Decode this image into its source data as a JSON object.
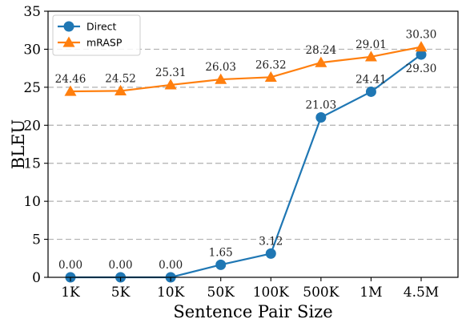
{
  "chart_data": {
    "type": "line",
    "categories": [
      "1K",
      "5K",
      "10K",
      "50K",
      "100K",
      "500K",
      "1M",
      "4.5M"
    ],
    "series": [
      {
        "name": "Direct",
        "color": "#1f77b4",
        "marker": "circle",
        "values": [
          0.0,
          0.0,
          0.0,
          1.65,
          3.12,
          21.03,
          24.41,
          29.3
        ],
        "labels": [
          "0.00",
          "0.00",
          "0.00",
          "1.65",
          "3.12",
          "21.03",
          "24.41",
          "29.30"
        ]
      },
      {
        "name": "mRASP",
        "color": "#ff7f0e",
        "marker": "triangle",
        "values": [
          24.46,
          24.52,
          25.31,
          26.03,
          26.32,
          28.24,
          29.01,
          30.3
        ],
        "labels": [
          "24.46",
          "24.52",
          "25.31",
          "26.03",
          "26.32",
          "28.24",
          "29.01",
          "30.30"
        ]
      }
    ],
    "xlabel": "Sentence Pair Size",
    "ylabel": "BLEU",
    "ylim": [
      0,
      35
    ],
    "yticks": [
      0,
      5,
      10,
      15,
      20,
      25,
      30,
      35
    ],
    "ytick_labels": [
      "0",
      "5",
      "10",
      "15",
      "20",
      "25",
      "30",
      "35"
    ],
    "grid": "horizontal-dashed",
    "legend": "top-left"
  }
}
